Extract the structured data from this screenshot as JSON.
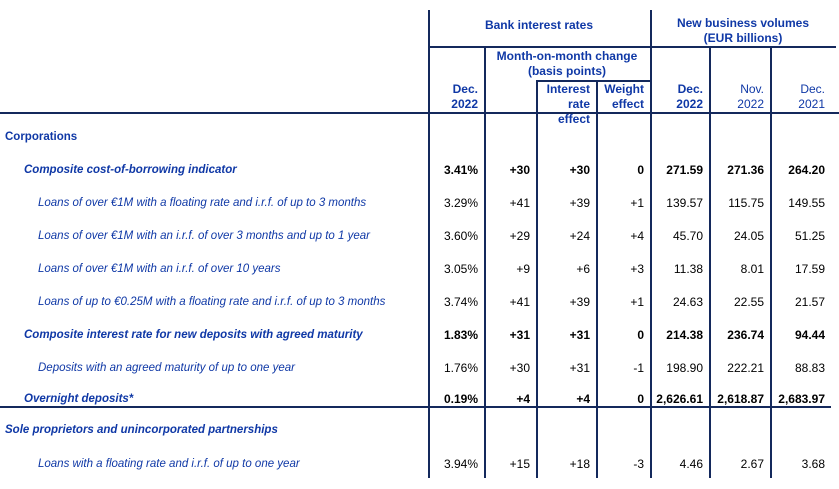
{
  "colors": {
    "label_blue": "#0f38a6",
    "border_navy": "#14295c",
    "value_black": "#000000"
  },
  "header": {
    "bank_interest_rates": "Bank interest rates",
    "new_business_volumes": [
      "New business volumes",
      "(EUR billions)"
    ],
    "mom_change": [
      "Month-on-month change",
      "(basis points)"
    ],
    "col_rate_dec2022": [
      "Dec.",
      "2022"
    ],
    "col_interest_rate_effect": [
      "Interest",
      "rate effect"
    ],
    "col_weight_effect": [
      "Weight",
      "effect"
    ],
    "col_vol_dec2022": [
      "Dec.",
      "2022"
    ],
    "col_vol_nov2022": [
      "Nov.",
      "2022"
    ],
    "col_vol_dec2021": [
      "Dec.",
      "2021"
    ]
  },
  "rows": [
    {
      "label": "Corporations",
      "emphasis": "bold",
      "indent": 0,
      "values_bold": false,
      "values": [
        "",
        "",
        "",
        "",
        "",
        "",
        ""
      ]
    },
    {
      "label": "Composite cost-of-borrowing indicator",
      "emphasis": "bold-italic",
      "indent": 1,
      "values_bold": true,
      "values": [
        "3.41%",
        "+30",
        "+30",
        "0",
        "271.59",
        "271.36",
        "264.20"
      ]
    },
    {
      "label": "Loans of over €1M with a floating rate and i.r.f. of up to 3 months",
      "emphasis": "italic",
      "indent": 2,
      "values_bold": false,
      "values": [
        "3.29%",
        "+41",
        "+39",
        "+1",
        "139.57",
        "115.75",
        "149.55"
      ]
    },
    {
      "label": "Loans of over €1M with an i.r.f. of over 3 months and up to 1 year",
      "emphasis": "italic",
      "indent": 2,
      "values_bold": false,
      "values": [
        "3.60%",
        "+29",
        "+24",
        "+4",
        "45.70",
        "24.05",
        "51.25"
      ]
    },
    {
      "label": "Loans of over €1M with an i.r.f. of over 10 years",
      "emphasis": "italic",
      "indent": 2,
      "values_bold": false,
      "values": [
        "3.05%",
        "+9",
        "+6",
        "+3",
        "11.38",
        "8.01",
        "17.59"
      ]
    },
    {
      "label": "Loans of up to €0.25M with a floating rate and i.r.f. of up to 3 months",
      "emphasis": "italic",
      "indent": 2,
      "values_bold": false,
      "values": [
        "3.74%",
        "+41",
        "+39",
        "+1",
        "24.63",
        "22.55",
        "21.57"
      ]
    },
    {
      "label": "Composite interest rate for new deposits with agreed maturity",
      "emphasis": "bold-italic",
      "indent": 1,
      "values_bold": true,
      "values": [
        "1.83%",
        "+31",
        "+31",
        "0",
        "214.38",
        "236.74",
        "94.44"
      ]
    },
    {
      "label": "Deposits with an agreed maturity of up to one year",
      "emphasis": "italic",
      "indent": 2,
      "values_bold": false,
      "values": [
        "1.76%",
        "+30",
        "+31",
        "-1",
        "198.90",
        "222.21",
        "88.83"
      ]
    },
    {
      "label": "Overnight deposits*",
      "emphasis": "bold-italic",
      "indent": 1,
      "values_bold": true,
      "values": [
        "0.19%",
        "+4",
        "+4",
        "0",
        "2,626.61",
        "2,618.87",
        "2,683.97"
      ]
    },
    {
      "label": "Sole proprietors and unincorporated partnerships",
      "emphasis": "bold-italic",
      "indent": 0,
      "values_bold": false,
      "values": [
        "",
        "",
        "",
        "",
        "",
        "",
        ""
      ]
    },
    {
      "label": "Loans with a floating rate and i.r.f. of up to one year",
      "emphasis": "italic",
      "indent": 2,
      "values_bold": false,
      "values": [
        "3.94%",
        "+15",
        "+18",
        "-3",
        "4.46",
        "2.67",
        "3.68"
      ]
    }
  ]
}
